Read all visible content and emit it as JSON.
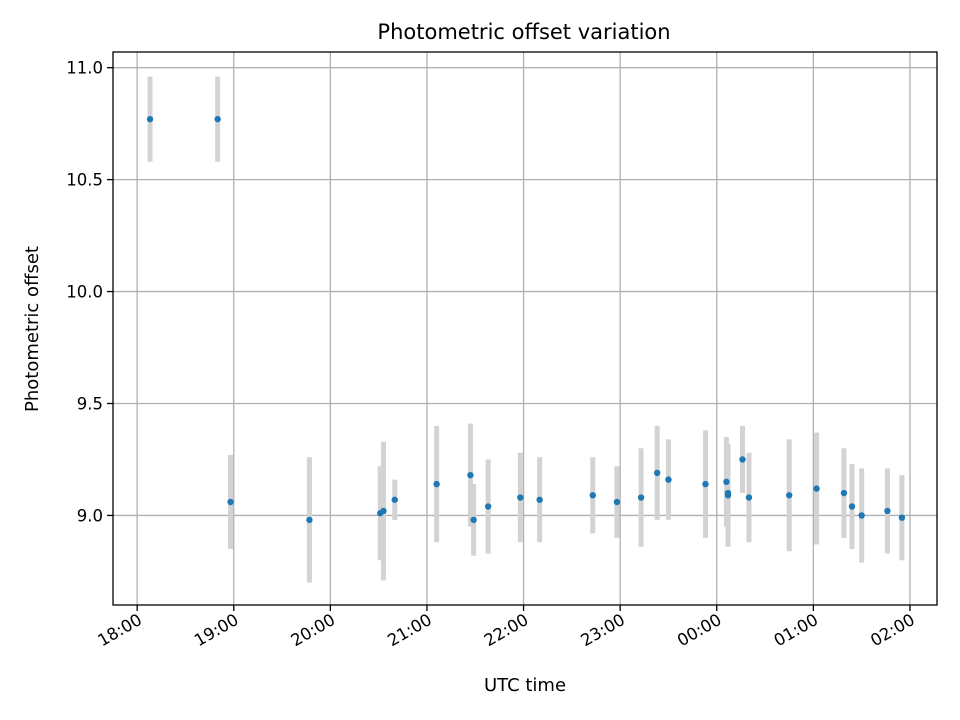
{
  "chart_data": {
    "type": "scatter",
    "title": "Photometric offset variation",
    "xlabel": "UTC time",
    "ylabel": "Photometric offset",
    "grid": true,
    "x_tick_labels": [
      "18:00",
      "19:00",
      "20:00",
      "21:00",
      "22:00",
      "23:00",
      "00:00",
      "01:00",
      "02:00"
    ],
    "x_tick_hours": [
      0,
      1,
      2,
      3,
      4,
      5,
      6,
      7,
      8
    ],
    "y_ticks": [
      9.0,
      9.5,
      10.0,
      10.5,
      11.0
    ],
    "y_tick_labels": [
      "9.0",
      "9.5",
      "10.0",
      "10.5",
      "11.0"
    ],
    "xlim_hours": [
      -0.25,
      8.28
    ],
    "ylim": [
      8.6,
      11.07
    ],
    "points": [
      {
        "t": "18:08",
        "y": 10.77,
        "err": 0.19
      },
      {
        "t": "18:50",
        "y": 10.77,
        "err": 0.19
      },
      {
        "t": "18:58",
        "y": 9.06,
        "err": 0.21
      },
      {
        "t": "19:47",
        "y": 8.98,
        "err": 0.28
      },
      {
        "t": "20:31",
        "y": 9.01,
        "err": 0.21
      },
      {
        "t": "20:33",
        "y": 9.02,
        "err": 0.31
      },
      {
        "t": "20:40",
        "y": 9.07,
        "err": 0.09
      },
      {
        "t": "21:06",
        "y": 9.14,
        "err": 0.26
      },
      {
        "t": "21:27",
        "y": 9.18,
        "err": 0.23
      },
      {
        "t": "21:29",
        "y": 8.98,
        "err": 0.16
      },
      {
        "t": "21:38",
        "y": 9.04,
        "err": 0.21
      },
      {
        "t": "21:58",
        "y": 9.08,
        "err": 0.2
      },
      {
        "t": "22:10",
        "y": 9.07,
        "err": 0.19
      },
      {
        "t": "22:43",
        "y": 9.09,
        "err": 0.17
      },
      {
        "t": "22:58",
        "y": 9.06,
        "err": 0.16
      },
      {
        "t": "23:13",
        "y": 9.08,
        "err": 0.22
      },
      {
        "t": "23:23",
        "y": 9.19,
        "err": 0.21
      },
      {
        "t": "23:30",
        "y": 9.16,
        "err": 0.18
      },
      {
        "t": "23:53",
        "y": 9.14,
        "err": 0.24
      },
      {
        "t": "00:06",
        "y": 9.15,
        "err": 0.2
      },
      {
        "t": "00:07",
        "y": 9.09,
        "err": 0.23
      },
      {
        "t": "00:07",
        "y": 9.1,
        "err": 0.19
      },
      {
        "t": "00:16",
        "y": 9.25,
        "err": 0.15
      },
      {
        "t": "00:20",
        "y": 9.08,
        "err": 0.2
      },
      {
        "t": "00:45",
        "y": 9.09,
        "err": 0.25
      },
      {
        "t": "01:02",
        "y": 9.12,
        "err": 0.25
      },
      {
        "t": "01:19",
        "y": 9.1,
        "err": 0.2
      },
      {
        "t": "01:24",
        "y": 9.04,
        "err": 0.19
      },
      {
        "t": "01:30",
        "y": 9.0,
        "err": 0.21
      },
      {
        "t": "01:46",
        "y": 9.02,
        "err": 0.19
      },
      {
        "t": "01:55",
        "y": 8.99,
        "err": 0.19
      }
    ],
    "colors": {
      "marker": "#1f77b4",
      "errorbar": "#d3d3d3",
      "grid": "#b0b0b0"
    }
  }
}
